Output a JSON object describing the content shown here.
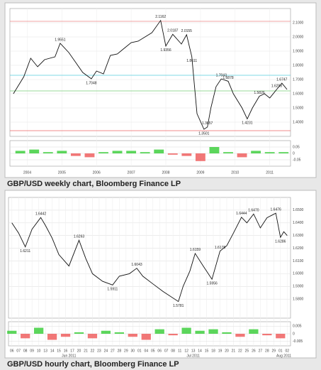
{
  "chart_data": [
    {
      "type": "line",
      "caption": "GBP/USD weekly chart, Bloomberg Finance LP",
      "color": "#111",
      "grid": true,
      "x": [
        2003.6,
        2003.9,
        2004.1,
        2004.3,
        2004.5,
        2004.8,
        2004.95,
        2005.2,
        2005.4,
        2005.6,
        2005.85,
        2006.0,
        2006.2,
        2006.4,
        2006.6,
        2006.8,
        2007.0,
        2007.2,
        2007.4,
        2007.6,
        2007.85,
        2008.0,
        2008.2,
        2008.45,
        2008.6,
        2008.75,
        2008.9,
        2009.1,
        2009.2,
        2009.3,
        2009.45,
        2009.6,
        2009.8,
        2009.95,
        2010.2,
        2010.35,
        2010.5,
        2010.7,
        2010.85,
        2011.0,
        2011.2,
        2011.35,
        2011.5
      ],
      "values": [
        1.6,
        1.72,
        1.85,
        1.79,
        1.84,
        1.86,
        1.9551,
        1.89,
        1.82,
        1.75,
        1.7048,
        1.76,
        1.74,
        1.87,
        1.88,
        1.92,
        1.96,
        1.97,
        2.0,
        2.03,
        2.1162,
        1.9356,
        2.0187,
        1.95,
        2.0155,
        1.8611,
        1.46,
        1.3501,
        1.3657,
        1.5,
        1.65,
        1.7043,
        1.6878,
        1.6,
        1.5,
        1.4231,
        1.5,
        1.5826,
        1.6,
        1.57,
        1.6298,
        1.6747,
        1.63
      ],
      "xlim": [
        2003.5,
        2011.6
      ],
      "xticks": [
        2004,
        2005,
        2006,
        2007,
        2008,
        2009,
        2010,
        2011
      ],
      "ylim": [
        1.3,
        2.2
      ],
      "yticks": [
        {
          "value": 1.4,
          "label": "1.4000"
        },
        {
          "value": 1.5,
          "label": "1.5000"
        },
        {
          "value": 1.6,
          "label": "1.6000"
        },
        {
          "value": 1.7,
          "label": "1.7000"
        },
        {
          "value": 1.8,
          "label": "1.8000"
        },
        {
          "value": 1.9,
          "label": "1.9000"
        },
        {
          "value": 2.0,
          "label": "2.0000"
        },
        {
          "value": 2.1,
          "label": "2.1000"
        }
      ],
      "levels": [
        {
          "value": 2.11,
          "color": "#e88"
        },
        {
          "value": 1.73,
          "color": "#5cd"
        },
        {
          "value": 1.62,
          "color": "#7c7"
        },
        {
          "value": 1.34,
          "color": "#e66"
        }
      ],
      "annotations": [
        {
          "x": 2004.95,
          "y": 1.9551,
          "text": "1.9551",
          "pos": "above"
        },
        {
          "x": 2005.85,
          "y": 1.7048,
          "text": "1.7048",
          "pos": "below"
        },
        {
          "x": 2007.85,
          "y": 2.1162,
          "text": "2.1162",
          "pos": "above"
        },
        {
          "x": 2008.0,
          "y": 1.9356,
          "text": "1.9356",
          "pos": "below"
        },
        {
          "x": 2008.2,
          "y": 2.0187,
          "text": "2.0187",
          "pos": "above"
        },
        {
          "x": 2008.6,
          "y": 2.0155,
          "text": "2.0155",
          "pos": "above"
        },
        {
          "x": 2008.75,
          "y": 1.8611,
          "text": "1.8611",
          "pos": "below"
        },
        {
          "x": 2009.1,
          "y": 1.3501,
          "text": "1.3501",
          "pos": "below"
        },
        {
          "x": 2009.2,
          "y": 1.3657,
          "text": "1.3657",
          "pos": "above"
        },
        {
          "x": 2009.6,
          "y": 1.7043,
          "text": "1.7043",
          "pos": "above"
        },
        {
          "x": 2009.8,
          "y": 1.6878,
          "text": "1.6878",
          "pos": "above"
        },
        {
          "x": 2010.35,
          "y": 1.4231,
          "text": "1.4231",
          "pos": "below"
        },
        {
          "x": 2010.7,
          "y": 1.5826,
          "text": "1.5826",
          "pos": "above"
        },
        {
          "x": 2011.2,
          "y": 1.6298,
          "text": "1.6298",
          "pos": "above"
        },
        {
          "x": 2011.35,
          "y": 1.6747,
          "text": "1.6747",
          "pos": "above"
        }
      ],
      "indicator": {
        "x": [
          2003.8,
          2004.2,
          2004.6,
          2005.0,
          2005.4,
          2005.8,
          2006.2,
          2006.6,
          2007.0,
          2007.4,
          2007.8,
          2008.2,
          2008.6,
          2009.0,
          2009.4,
          2009.8,
          2010.2,
          2010.6,
          2011.0,
          2011.4
        ],
        "values": [
          0.02,
          0.03,
          0.01,
          0.02,
          -0.02,
          -0.03,
          0.01,
          0.02,
          0.02,
          0.01,
          0.03,
          -0.01,
          -0.02,
          -0.06,
          0.05,
          0.01,
          -0.03,
          0.02,
          0.01,
          0.01
        ],
        "ylim": [
          -0.1,
          0.1
        ],
        "yticks": [
          -0.05,
          0,
          0.05
        ],
        "up_color": "#3c3",
        "down_color": "#e55"
      }
    },
    {
      "type": "line",
      "caption": "GBP/USD hourly chart, Bloomberg Finance LP",
      "color": "#111",
      "grid": true,
      "x": [
        0,
        1,
        2,
        3,
        4.3,
        5,
        6,
        7,
        8.5,
        10,
        11,
        12,
        13.5,
        15,
        16,
        17.5,
        18.6,
        19.5,
        21,
        22.5,
        24.8,
        25.5,
        26.5,
        27.3,
        28.5,
        29.8,
        31,
        32,
        33,
        34.2,
        35,
        36,
        37,
        38,
        39.3,
        40,
        40.5,
        41
      ],
      "values": [
        1.64,
        1.632,
        1.6211,
        1.635,
        1.6442,
        1.638,
        1.628,
        1.615,
        1.606,
        1.6263,
        1.612,
        1.6,
        1.594,
        1.5911,
        1.598,
        1.6,
        1.6043,
        1.598,
        1.592,
        1.586,
        1.5781,
        1.59,
        1.602,
        1.6159,
        1.606,
        1.5956,
        1.6178,
        1.622,
        1.632,
        1.6444,
        1.64,
        1.647,
        1.636,
        1.644,
        1.6476,
        1.6286,
        1.633,
        1.63
      ],
      "xlim": [
        -0.5,
        41.5
      ],
      "xticks": [
        {
          "value": 0,
          "label": "06"
        },
        {
          "value": 1,
          "label": "07"
        },
        {
          "value": 2,
          "label": "08"
        },
        {
          "value": 3,
          "label": "09"
        },
        {
          "value": 4,
          "label": "10"
        },
        {
          "value": 5,
          "label": "13"
        },
        {
          "value": 6,
          "label": "14"
        },
        {
          "value": 7,
          "label": "15"
        },
        {
          "value": 8,
          "label": "16"
        },
        {
          "value": 9,
          "label": "17"
        },
        {
          "value": 10,
          "label": "20"
        },
        {
          "value": 11,
          "label": "21"
        },
        {
          "value": 12,
          "label": "22"
        },
        {
          "value": 13,
          "label": "23"
        },
        {
          "value": 14,
          "label": "24"
        },
        {
          "value": 15,
          "label": "27"
        },
        {
          "value": 16,
          "label": "28"
        },
        {
          "value": 17,
          "label": "29"
        },
        {
          "value": 18,
          "label": "30"
        },
        {
          "value": 19,
          "label": "01"
        },
        {
          "value": 20,
          "label": "04"
        },
        {
          "value": 21,
          "label": "05"
        },
        {
          "value": 22,
          "label": "06"
        },
        {
          "value": 23,
          "label": "07"
        },
        {
          "value": 24,
          "label": "08"
        },
        {
          "value": 25,
          "label": "11"
        },
        {
          "value": 26,
          "label": "12"
        },
        {
          "value": 27,
          "label": "13"
        },
        {
          "value": 28,
          "label": "14"
        },
        {
          "value": 29,
          "label": "15"
        },
        {
          "value": 30,
          "label": "18"
        },
        {
          "value": 31,
          "label": "19"
        },
        {
          "value": 32,
          "label": "20"
        },
        {
          "value": 33,
          "label": "21"
        },
        {
          "value": 34,
          "label": "22"
        },
        {
          "value": 35,
          "label": "25"
        },
        {
          "value": 36,
          "label": "26"
        },
        {
          "value": 37,
          "label": "27"
        },
        {
          "value": 38,
          "label": "28"
        },
        {
          "value": 39,
          "label": "29"
        },
        {
          "value": 40,
          "label": "01"
        },
        {
          "value": 41,
          "label": "02"
        }
      ],
      "ylim": [
        1.565,
        1.66
      ],
      "yticks": [
        {
          "value": 1.58,
          "label": "1.5800"
        },
        {
          "value": 1.59,
          "label": "1.5900"
        },
        {
          "value": 1.6,
          "label": "1.6000"
        },
        {
          "value": 1.61,
          "label": "1.6100"
        },
        {
          "value": 1.62,
          "label": "1.6200"
        },
        {
          "value": 1.63,
          "label": "1.6300"
        },
        {
          "value": 1.64,
          "label": "1.6400"
        },
        {
          "value": 1.65,
          "label": "1.6500"
        }
      ],
      "period_labels": [
        {
          "x": 8.5,
          "text": "Jun 2011"
        },
        {
          "x": 27,
          "text": "Jul 2011"
        },
        {
          "x": 40.5,
          "text": "Aug 2011"
        }
      ],
      "annotations": [
        {
          "x": 2,
          "y": 1.6211,
          "text": "1.6211",
          "pos": "below"
        },
        {
          "x": 4.3,
          "y": 1.6442,
          "text": "1.6442",
          "pos": "above"
        },
        {
          "x": 10,
          "y": 1.6263,
          "text": "1.6263",
          "pos": "above"
        },
        {
          "x": 15,
          "y": 1.5911,
          "text": "1.5911",
          "pos": "below"
        },
        {
          "x": 18.6,
          "y": 1.6043,
          "text": "1.6043",
          "pos": "above"
        },
        {
          "x": 24.8,
          "y": 1.5781,
          "text": "1.5781",
          "pos": "below"
        },
        {
          "x": 27.3,
          "y": 1.6159,
          "text": "1.6159",
          "pos": "above"
        },
        {
          "x": 29.8,
          "y": 1.5956,
          "text": "1.5956",
          "pos": "below"
        },
        {
          "x": 31,
          "y": 1.6178,
          "text": "1.6178",
          "pos": "above"
        },
        {
          "x": 34.2,
          "y": 1.6444,
          "text": "1.6444",
          "pos": "above"
        },
        {
          "x": 36,
          "y": 1.647,
          "text": "1.6470",
          "pos": "above"
        },
        {
          "x": 39.3,
          "y": 1.6476,
          "text": "1.6476",
          "pos": "above"
        },
        {
          "x": 40,
          "y": 1.6286,
          "text": "1.6286",
          "pos": "below"
        }
      ],
      "indicator": {
        "x": [
          0,
          2,
          4,
          6,
          8,
          10,
          12,
          14,
          16,
          18,
          20,
          22,
          24,
          26,
          28,
          30,
          32,
          34,
          36,
          38,
          40
        ],
        "values": [
          0.002,
          -0.003,
          0.004,
          -0.004,
          -0.002,
          0.001,
          -0.003,
          0.002,
          0.001,
          -0.002,
          -0.004,
          0.003,
          -0.001,
          0.004,
          0.002,
          0.003,
          0.001,
          -0.002,
          0.003,
          -0.001,
          -0.003
        ],
        "ylim": [
          -0.008,
          0.008
        ],
        "yticks": [
          -0.005,
          0,
          0.005
        ],
        "up_color": "#3c3",
        "down_color": "#e55"
      }
    }
  ]
}
